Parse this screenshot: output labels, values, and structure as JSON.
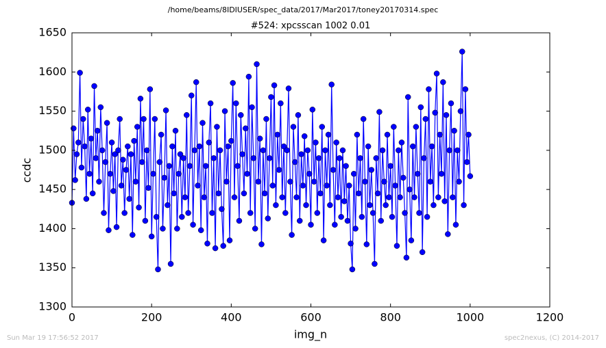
{
  "chart_data": {
    "type": "line",
    "title": "/home/beams/8IDIUSER/spec_data/2017/Mar2017/toney20170314.spec",
    "subtitle": "#524: xpcsscan 1002 0.01",
    "x_label": "img_n",
    "y_label": "ccdc",
    "footer_left": "Sun Mar 19 17:56:52 2017",
    "footer_right": "spec2nexus, (C) 2014-2017",
    "xlim": [
      0,
      1200
    ],
    "xticks": [
      0,
      200,
      400,
      600,
      800,
      1000,
      1200
    ],
    "ylim": [
      1300,
      1650
    ],
    "yticks": [
      1300,
      1350,
      1400,
      1450,
      1500,
      1550,
      1600,
      1650
    ],
    "grid": false,
    "x": [
      0,
      4,
      8,
      12,
      16,
      20,
      24,
      28,
      32,
      36,
      40,
      44,
      48,
      52,
      56,
      60,
      64,
      68,
      72,
      76,
      80,
      84,
      88,
      92,
      96,
      100,
      104,
      108,
      112,
      116,
      120,
      124,
      128,
      132,
      136,
      140,
      144,
      148,
      152,
      156,
      160,
      164,
      168,
      172,
      176,
      180,
      184,
      188,
      192,
      196,
      200,
      204,
      208,
      212,
      216,
      220,
      224,
      228,
      232,
      236,
      240,
      244,
      248,
      252,
      256,
      260,
      264,
      268,
      272,
      276,
      280,
      284,
      288,
      292,
      296,
      300,
      304,
      308,
      312,
      316,
      320,
      324,
      328,
      332,
      336,
      340,
      344,
      348,
      352,
      356,
      360,
      364,
      368,
      372,
      376,
      380,
      384,
      388,
      392,
      396,
      400,
      404,
      408,
      412,
      416,
      420,
      424,
      428,
      432,
      436,
      440,
      444,
      448,
      452,
      456,
      460,
      464,
      468,
      472,
      476,
      480,
      484,
      488,
      492,
      496,
      500,
      504,
      508,
      512,
      516,
      520,
      524,
      528,
      532,
      536,
      540,
      544,
      548,
      552,
      556,
      560,
      564,
      568,
      572,
      576,
      580,
      584,
      588,
      592,
      596,
      600,
      604,
      608,
      612,
      616,
      620,
      624,
      628,
      632,
      636,
      640,
      644,
      648,
      652,
      656,
      660,
      664,
      668,
      672,
      676,
      680,
      684,
      688,
      692,
      696,
      700,
      704,
      708,
      712,
      716,
      720,
      724,
      728,
      732,
      736,
      740,
      744,
      748,
      752,
      756,
      760,
      764,
      768,
      772,
      776,
      780,
      784,
      788,
      792,
      796,
      800,
      804,
      808,
      812,
      816,
      820,
      824,
      828,
      832,
      836,
      840,
      844,
      848,
      852,
      856,
      860,
      864,
      868,
      872,
      876,
      880,
      884,
      888,
      892,
      896,
      900,
      904,
      908,
      912,
      916,
      920,
      924,
      928,
      932,
      936,
      940,
      944,
      948,
      952,
      956,
      960,
      964,
      968,
      972,
      976,
      980,
      984,
      988,
      992,
      996,
      1000
    ],
    "series": [
      {
        "name": "ccdc",
        "color": "#0000ff",
        "values": [
          1433,
          1528,
          1462,
          1495,
          1510,
          1599,
          1478,
          1540,
          1505,
          1438,
          1552,
          1470,
          1515,
          1445,
          1582,
          1490,
          1525,
          1460,
          1555,
          1500,
          1420,
          1485,
          1535,
          1398,
          1470,
          1510,
          1448,
          1495,
          1402,
          1500,
          1540,
          1455,
          1488,
          1420,
          1475,
          1505,
          1438,
          1495,
          1392,
          1512,
          1460,
          1530,
          1427,
          1566,
          1485,
          1540,
          1410,
          1500,
          1452,
          1578,
          1390,
          1470,
          1540,
          1415,
          1348,
          1485,
          1520,
          1400,
          1465,
          1551,
          1430,
          1480,
          1355,
          1505,
          1445,
          1525,
          1400,
          1470,
          1495,
          1415,
          1490,
          1440,
          1545,
          1420,
          1480,
          1570,
          1405,
          1500,
          1587,
          1455,
          1505,
          1398,
          1535,
          1440,
          1480,
          1381,
          1510,
          1560,
          1420,
          1490,
          1375,
          1530,
          1445,
          1500,
          1425,
          1378,
          1550,
          1460,
          1505,
          1385,
          1512,
          1586,
          1440,
          1560,
          1480,
          1410,
          1545,
          1495,
          1445,
          1528,
          1470,
          1594,
          1420,
          1555,
          1490,
          1400,
          1610,
          1460,
          1515,
          1380,
          1500,
          1445,
          1540,
          1413,
          1490,
          1568,
          1455,
          1583,
          1430,
          1520,
          1475,
          1560,
          1440,
          1505,
          1420,
          1500,
          1579,
          1460,
          1392,
          1530,
          1485,
          1440,
          1545,
          1410,
          1495,
          1455,
          1518,
          1430,
          1500,
          1470,
          1405,
          1552,
          1460,
          1510,
          1420,
          1490,
          1445,
          1530,
          1385,
          1500,
          1455,
          1520,
          1430,
          1584,
          1475,
          1405,
          1510,
          1440,
          1490,
          1415,
          1500,
          1435,
          1480,
          1410,
          1455,
          1381,
          1348,
          1470,
          1400,
          1520,
          1445,
          1490,
          1415,
          1540,
          1460,
          1380,
          1505,
          1430,
          1475,
          1420,
          1355,
          1490,
          1445,
          1549,
          1410,
          1500,
          1460,
          1430,
          1520,
          1440,
          1480,
          1415,
          1530,
          1455,
          1378,
          1500,
          1440,
          1510,
          1465,
          1420,
          1363,
          1568,
          1450,
          1385,
          1505,
          1440,
          1530,
          1470,
          1420,
          1555,
          1370,
          1490,
          1540,
          1415,
          1578,
          1460,
          1505,
          1430,
          1548,
          1598,
          1440,
          1520,
          1470,
          1587,
          1435,
          1545,
          1393,
          1500,
          1560,
          1440,
          1525,
          1405,
          1500,
          1460,
          1550,
          1626,
          1430,
          1578,
          1485,
          1520,
          1467
        ]
      }
    ]
  }
}
